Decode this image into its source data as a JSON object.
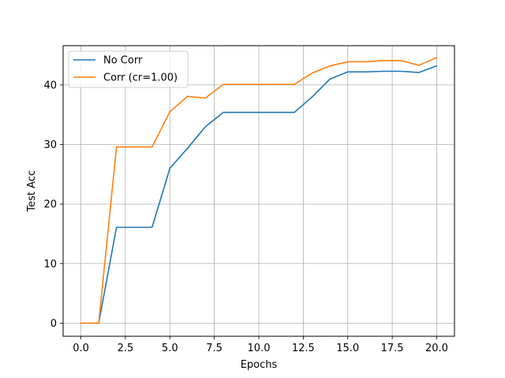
{
  "chart_data": {
    "type": "line",
    "title": "",
    "xlabel": "Epochs",
    "ylabel": "Test Acc",
    "xlim": [
      -1,
      21
    ],
    "ylim": [
      -2.2,
      46.6
    ],
    "xticks": [
      0.0,
      2.5,
      5.0,
      7.5,
      10.0,
      12.5,
      15.0,
      17.5,
      20.0
    ],
    "xtick_labels": [
      "0.0",
      "2.5",
      "5.0",
      "7.5",
      "10.0",
      "12.5",
      "15.0",
      "17.5",
      "20.0"
    ],
    "yticks": [
      0,
      10,
      20,
      30,
      40
    ],
    "ytick_labels": [
      "0",
      "10",
      "20",
      "30",
      "40"
    ],
    "grid": true,
    "legend": "top-left",
    "x": [
      0,
      1,
      2,
      3,
      4,
      5,
      6,
      7,
      8,
      9,
      10,
      11,
      12,
      13,
      14,
      15,
      16,
      17,
      18,
      19,
      20
    ],
    "series": [
      {
        "name": "No Corr",
        "color": "#1f77b4",
        "values": [
          0,
          0,
          16.1,
          16.1,
          16.1,
          26.0,
          29.4,
          33.0,
          35.4,
          35.4,
          35.4,
          35.4,
          35.4,
          38.0,
          41.0,
          42.2,
          42.2,
          42.3,
          42.3,
          42.1,
          43.2
        ]
      },
      {
        "name": "Corr (cr=1.00)",
        "color": "#ff7f0e",
        "values": [
          0,
          0,
          29.6,
          29.6,
          29.6,
          35.5,
          38.1,
          37.8,
          40.1,
          40.1,
          40.1,
          40.1,
          40.1,
          42.0,
          43.2,
          43.9,
          43.9,
          44.1,
          44.1,
          43.3,
          44.6
        ]
      }
    ]
  }
}
